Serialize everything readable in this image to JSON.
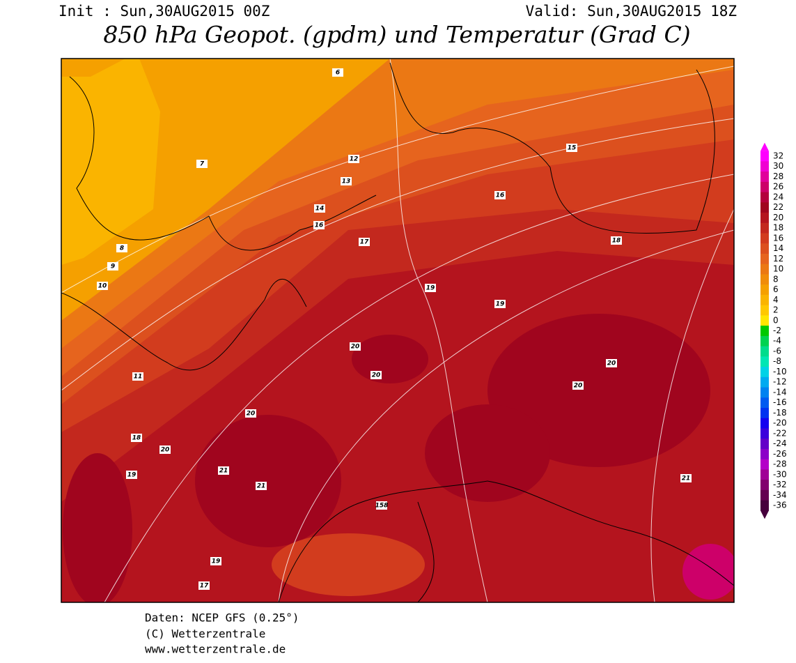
{
  "header": {
    "init": "Init : Sun,30AUG2015 00Z",
    "valid": "Valid: Sun,30AUG2015 18Z",
    "title": "850 hPa Geopot. (gpdm) und Temperatur (Grad C)"
  },
  "legend": {
    "levels": [
      32,
      30,
      28,
      26,
      24,
      22,
      20,
      18,
      16,
      14,
      12,
      10,
      8,
      6,
      4,
      2,
      0,
      -2,
      -4,
      -6,
      -8,
      -10,
      -12,
      -14,
      -16,
      -18,
      -20,
      -22,
      -24,
      -26,
      -28,
      -30,
      -32,
      -34,
      -36
    ],
    "colors": [
      "#ff00ff",
      "#f000d2",
      "#e1009b",
      "#cd0069",
      "#b4003c",
      "#a0051e",
      "#b4141e",
      "#c3281e",
      "#d23c1e",
      "#dc501e",
      "#e6641e",
      "#eb7814",
      "#f08c0a",
      "#f5a000",
      "#fab400",
      "#ffc800",
      "#ffe600",
      "#00c800",
      "#00d250",
      "#00dc8c",
      "#00e6b4",
      "#00d2e6",
      "#00aaf0",
      "#0082f0",
      "#005af0",
      "#0032f0",
      "#1400f0",
      "#3c00dc",
      "#6400c8",
      "#8c00c8",
      "#b400c8",
      "#a00096",
      "#82006e",
      "#640050",
      "#46003c"
    ]
  },
  "map": {
    "labels": [
      "6",
      "7",
      "8",
      "9",
      "10",
      "11",
      "12",
      "13",
      "14",
      "15",
      "16",
      "16",
      "17",
      "18",
      "18",
      "19",
      "19",
      "19",
      "20",
      "20",
      "20",
      "20",
      "20",
      "21",
      "21",
      "21",
      "20",
      "19",
      "17",
      "158"
    ]
  },
  "footer": {
    "source": "Daten: NCEP GFS (0.25°)",
    "copyright": "(C) Wetterzentrale",
    "url": "www.wetterzentrale.de"
  }
}
